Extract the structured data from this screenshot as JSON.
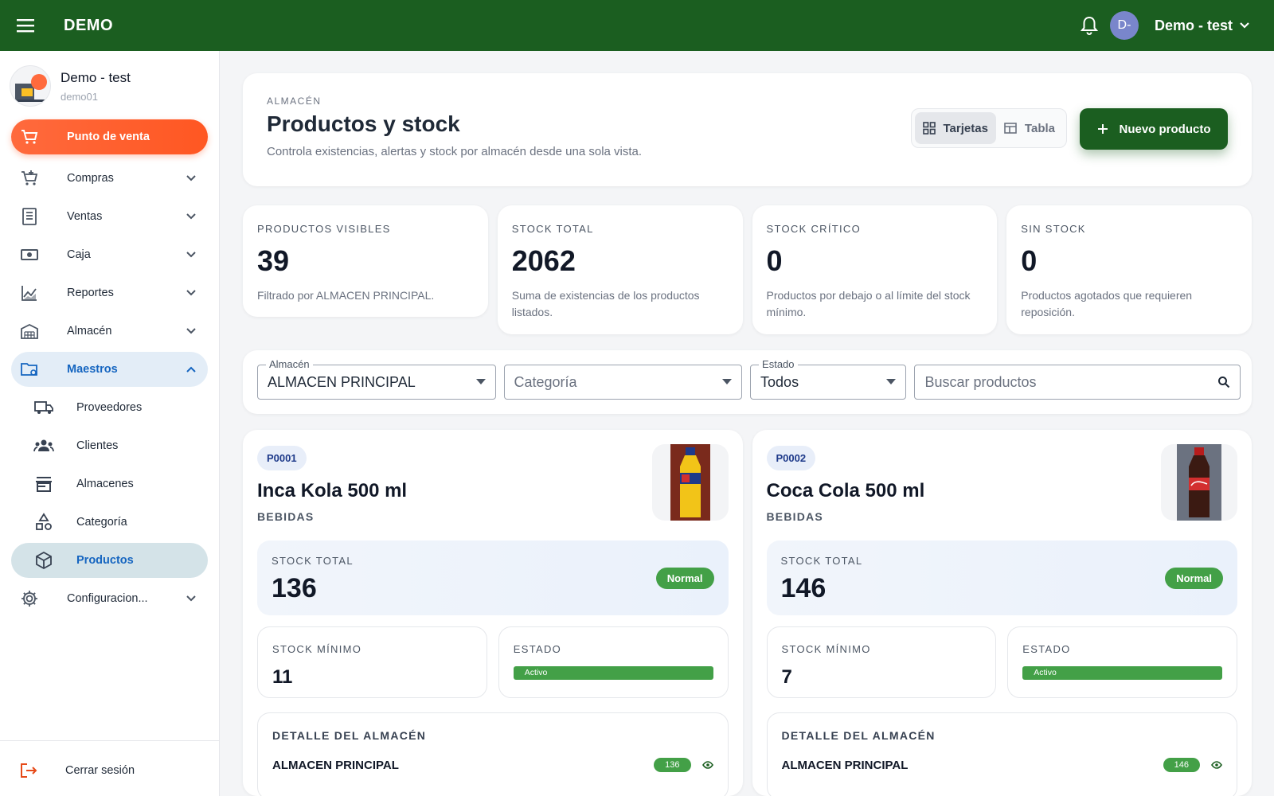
{
  "topbar": {
    "brand": "DEMO",
    "user_label": "Demo - test",
    "avatar_initials": "D-"
  },
  "sidebar": {
    "profile_name": "Demo - test",
    "profile_sub": "demo01",
    "pos_label": "Punto de venta",
    "items": [
      {
        "label": "Compras",
        "icon": "cart-icon"
      },
      {
        "label": "Ventas",
        "icon": "receipt-icon"
      },
      {
        "label": "Caja",
        "icon": "cash-icon"
      },
      {
        "label": "Reportes",
        "icon": "chart-icon"
      },
      {
        "label": "Almacén",
        "icon": "warehouse-icon"
      },
      {
        "label": "Maestros",
        "icon": "folder-settings-icon"
      }
    ],
    "sub_items": [
      {
        "label": "Proveedores",
        "icon": "truck-icon"
      },
      {
        "label": "Clientes",
        "icon": "people-icon"
      },
      {
        "label": "Almacenes",
        "icon": "store-icon"
      },
      {
        "label": "Categoría",
        "icon": "shapes-icon"
      },
      {
        "label": "Productos",
        "icon": "box-icon"
      }
    ],
    "config_label": "Configuracion...",
    "logout_label": "Cerrar sesión"
  },
  "header": {
    "overline": "ALMACÉN",
    "title": "Productos y stock",
    "description": "Controla existencias, alertas y stock por almacén desde una sola vista.",
    "view_cards": "Tarjetas",
    "view_table": "Tabla",
    "new_button": "Nuevo producto"
  },
  "stats": [
    {
      "label": "PRODUCTOS VISIBLES",
      "value": "39",
      "desc": "Filtrado por ALMACEN PRINCIPAL."
    },
    {
      "label": "STOCK TOTAL",
      "value": "2062",
      "desc": "Suma de existencias de los productos listados."
    },
    {
      "label": "STOCK CRÍTICO",
      "value": "0",
      "desc": "Productos por debajo o al límite del stock mínimo."
    },
    {
      "label": "SIN STOCK",
      "value": "0",
      "desc": "Productos agotados que requieren reposición."
    }
  ],
  "filters": {
    "almacen_label": "Almacén",
    "almacen_value": "ALMACEN PRINCIPAL",
    "categoria_placeholder": "Categoría",
    "estado_label": "Estado",
    "estado_value": "Todos",
    "search_placeholder": "Buscar productos"
  },
  "products": [
    {
      "code": "P0001",
      "name": "Inca Kola 500 ml",
      "category": "BEBIDAS",
      "stock_label": "STOCK TOTAL",
      "stock": "136",
      "status_pill": "Normal",
      "min_label": "STOCK MÍNIMO",
      "min": "11",
      "estado_label": "ESTADO",
      "estado": "Activo",
      "detail_title": "DETALLE DEL ALMACÉN",
      "warehouse": "ALMACEN PRINCIPAL",
      "warehouse_qty": "136",
      "bottle_color": "#f2c418",
      "bottle_label": "#1e3a8a"
    },
    {
      "code": "P0002",
      "name": "Coca Cola 500 ml",
      "category": "BEBIDAS",
      "stock_label": "STOCK TOTAL",
      "stock": "146",
      "status_pill": "Normal",
      "min_label": "STOCK MÍNIMO",
      "min": "7",
      "estado_label": "ESTADO",
      "estado": "Activo",
      "detail_title": "DETALLE DEL ALMACÉN",
      "warehouse": "ALMACEN PRINCIPAL",
      "warehouse_qty": "146",
      "bottle_color": "#3b1a12",
      "bottle_label": "#d32f2f"
    }
  ],
  "colors": {
    "topbar": "#1b5e20",
    "accent_orange": "#ff5722",
    "status_green": "#43a047",
    "active_blue": "#1565c0"
  }
}
